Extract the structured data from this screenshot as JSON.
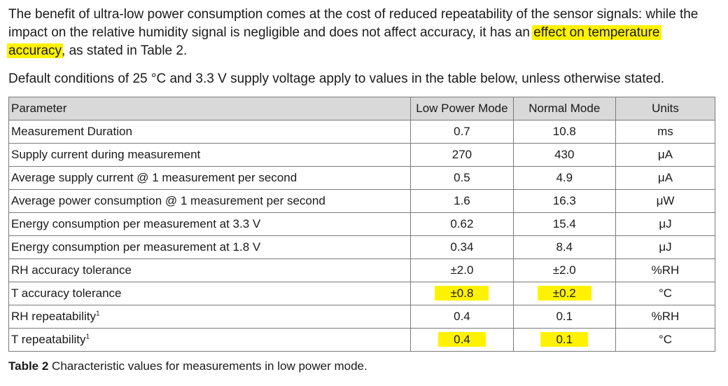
{
  "intro": {
    "line1": "The benefit of ultra-low power consumption comes at the cost of reduced repeatability of the sensor signals: while the",
    "line2_a": "impact on the relative humidity signal is negligible and does not affect accuracy, it has an",
    "line2_hl": "effect on temperature",
    "line3_hl": "accuracy",
    "line3_b": ", as stated in Table 2."
  },
  "conditions": "Default conditions of 25 °C and 3.3 V supply voltage apply to values in the table below, unless otherwise stated.",
  "table": {
    "headers": [
      "Parameter",
      "Low Power Mode",
      "Normal Mode",
      "Units"
    ],
    "rows": [
      {
        "param": "Measurement Duration",
        "sup": "",
        "low": "0.7",
        "normal": "10.8",
        "unit": "ms"
      },
      {
        "param": "Supply current during measurement",
        "sup": "",
        "low": "270",
        "normal": "430",
        "unit": "μA"
      },
      {
        "param": "Average supply current @ 1 measurement per second",
        "sup": "",
        "low": "0.5",
        "normal": "4.9",
        "unit": "μA"
      },
      {
        "param": "Average power consumption @ 1 measurement per second",
        "sup": "",
        "low": "1.6",
        "normal": "16.3",
        "unit": "μW"
      },
      {
        "param": "Energy consumption per measurement at 3.3 V",
        "sup": "",
        "low": "0.62",
        "normal": "15.4",
        "unit": "μJ"
      },
      {
        "param": "Energy consumption per measurement at 1.8 V",
        "sup": "",
        "low": "0.34",
        "normal": "8.4",
        "unit": "μJ"
      },
      {
        "param": "RH accuracy tolerance",
        "sup": "",
        "low": "±2.0",
        "normal": "±2.0",
        "unit": "%RH"
      },
      {
        "param": "T accuracy tolerance",
        "sup": "",
        "low": "±0.8",
        "normal": "±0.2",
        "unit": "°C"
      },
      {
        "param": "RH repeatability",
        "sup": "1",
        "low": "0.4",
        "normal": "0.1",
        "unit": "%RH"
      },
      {
        "param": "T repeatability",
        "sup": "1",
        "low": "0.4",
        "normal": "0.1",
        "unit": "°C"
      }
    ]
  },
  "caption": {
    "label": "Table 2",
    "text": " Characteristic values for measurements in low power mode."
  },
  "highlight_color": "#fff200"
}
